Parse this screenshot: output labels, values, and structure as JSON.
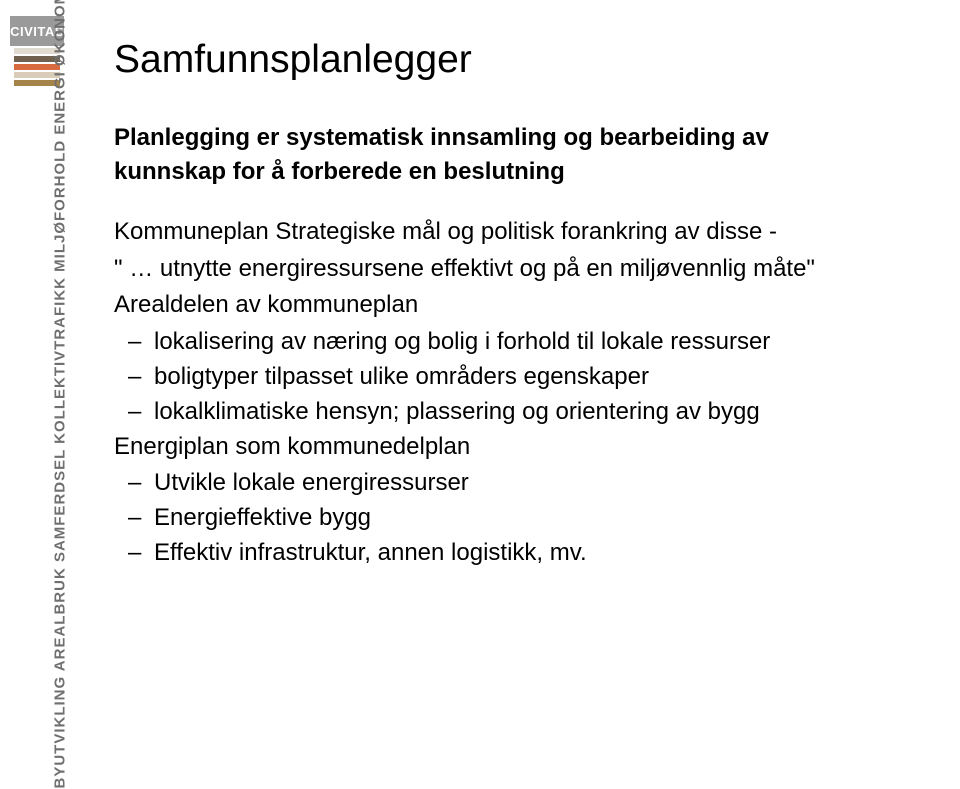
{
  "logo": {
    "text": "CIVITAS"
  },
  "sidebar_bars": {
    "colors": [
      "#e0dad1",
      "#6f6050",
      "#d76a3f",
      "#d9cdb9",
      "#a5844a"
    ]
  },
  "vertical_label": "BYUTVIKLING AREALBRUK SAMFERDSEL KOLLEKTIVTRAFIKK MILJØFORHOLD ENERGI ØKONOMI",
  "title": "Samfunnsplanlegger",
  "subtitle_line1": "Planlegging er systematisk innsamling og bearbeiding av",
  "subtitle_line2": "kunnskap for å forberede en beslutning",
  "section_kommuneplan": "Kommuneplan Strategiske mål og politisk forankring av disse -",
  "quote": "\" … utnytte energiressursene effektivt og på en miljøvennlig måte\"",
  "arealdelen": "Arealdelen av kommuneplan",
  "areal_items": [
    "lokalisering av næring og bolig i forhold til lokale ressurser",
    "boligtyper tilpasset ulike områders egenskaper",
    "lokalklimatiske hensyn; plassering og orientering av bygg"
  ],
  "energiplan": "Energiplan som kommunedelplan",
  "energi_items": [
    "Utvikle lokale energiressurser",
    "Energieffektive bygg",
    "Effektiv infrastruktur, annen logistikk, mv."
  ]
}
